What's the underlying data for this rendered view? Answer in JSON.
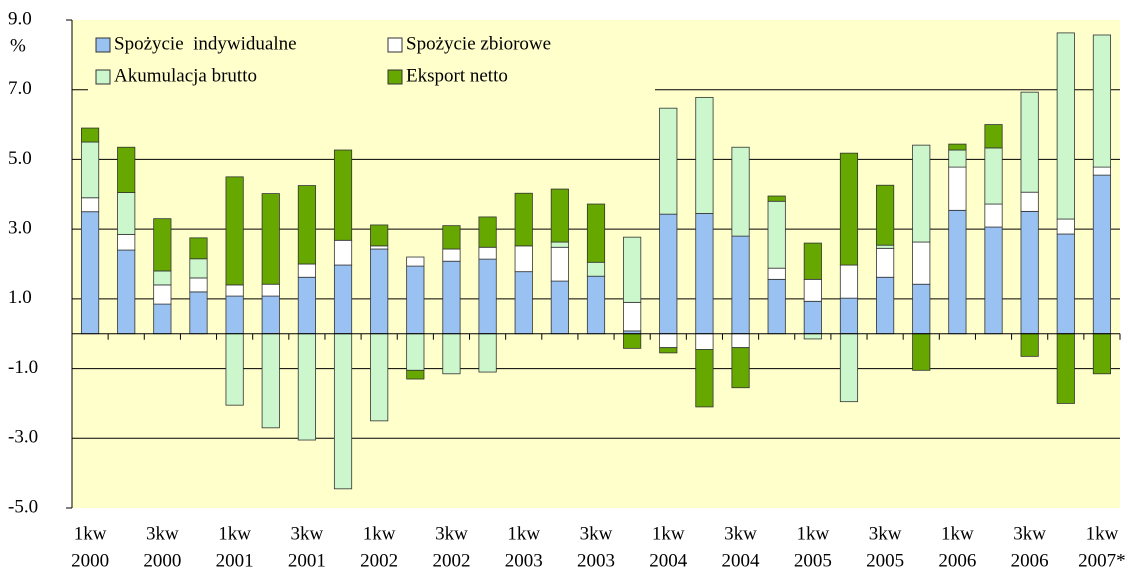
{
  "chart_data": {
    "type": "stacked-bar",
    "y_unit": "%",
    "categories": [
      [
        "1kw",
        "2000"
      ],
      null,
      [
        "3kw",
        "2000"
      ],
      null,
      [
        "1kw",
        "2001"
      ],
      null,
      [
        "3kw",
        "2001"
      ],
      null,
      [
        "1kw",
        "2002"
      ],
      null,
      [
        "3kw",
        "2002"
      ],
      null,
      [
        "1kw",
        "2003"
      ],
      null,
      [
        "3kw",
        "2003"
      ],
      null,
      [
        "1kw",
        "2004"
      ],
      null,
      [
        "3kw",
        "2004"
      ],
      null,
      [
        "1kw",
        "2005"
      ],
      null,
      [
        "3kw",
        "2005"
      ],
      null,
      [
        "1kw",
        "2006"
      ],
      null,
      [
        "3kw",
        "2006"
      ],
      null,
      [
        "1kw",
        "2007*"
      ]
    ],
    "series": [
      {
        "name": "Spożycie  indywidualne",
        "color": "#99c2f2",
        "values": [
          3.5,
          2.4,
          0.85,
          1.2,
          1.08,
          1.08,
          1.62,
          1.97,
          2.43,
          1.94,
          2.08,
          2.14,
          1.78,
          1.51,
          1.65,
          0.08,
          3.43,
          3.45,
          2.8,
          1.56,
          0.93,
          1.02,
          1.62,
          1.42,
          3.54,
          3.06,
          3.51,
          2.86,
          4.55
        ]
      },
      {
        "name": "Spożycie zbiorowe",
        "color": "#ffffff",
        "values": [
          0.4,
          0.45,
          0.55,
          0.4,
          0.32,
          0.34,
          0.38,
          0.71,
          0.09,
          0.26,
          0.35,
          0.34,
          0.74,
          0.97,
          0,
          0.82,
          -0.4,
          -0.45,
          -0.4,
          0.32,
          0.63,
          0.95,
          0.83,
          1.21,
          1.24,
          0.66,
          0.55,
          0.43,
          0.23
        ]
      },
      {
        "name": "Akumulacja brutto",
        "color": "#ccf7cc",
        "values": [
          1.6,
          1.2,
          0.4,
          0.55,
          -2.05,
          -2.7,
          -3.05,
          -4.45,
          -2.5,
          -1.05,
          -1.15,
          -1.1,
          0,
          0.15,
          0.4,
          1.87,
          3.04,
          3.33,
          2.55,
          1.92,
          -0.15,
          -1.95,
          0.09,
          2.78,
          0.49,
          1.61,
          2.87,
          5.34,
          3.79
        ]
      },
      {
        "name": "Eksport netto",
        "color": "#66a800",
        "values": [
          0.4,
          1.3,
          1.5,
          0.6,
          3.1,
          2.6,
          2.25,
          2.59,
          0.6,
          -0.25,
          0.67,
          0.87,
          1.51,
          1.52,
          1.67,
          -0.42,
          -0.15,
          -1.65,
          -1.15,
          0.15,
          1.04,
          3.21,
          1.72,
          -1.05,
          0.17,
          0.67,
          -0.65,
          -2.0,
          -1.15
        ]
      }
    ],
    "ylim": [
      -5,
      9
    ],
    "yticks": [
      {
        "value": -5,
        "label": "-5.0"
      },
      {
        "value": -3,
        "label": "-3.0"
      },
      {
        "value": -1,
        "label": "-1.0"
      },
      {
        "value": 1,
        "label": "1.0"
      },
      {
        "value": 3,
        "label": "3.0"
      },
      {
        "value": 5,
        "label": "5.0"
      },
      {
        "value": 7,
        "label": "7.0"
      },
      {
        "value": 9,
        "label": "9.0"
      }
    ],
    "grid": true
  }
}
